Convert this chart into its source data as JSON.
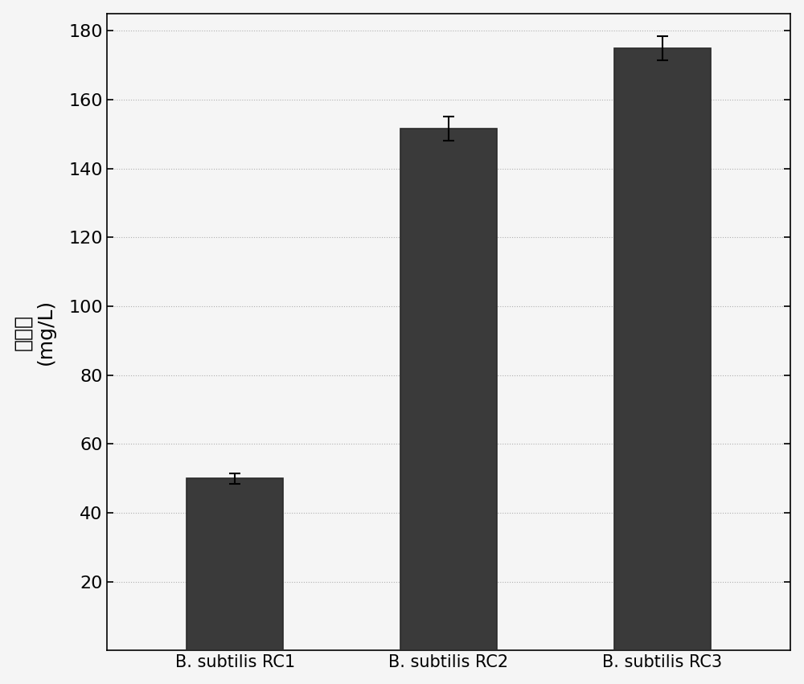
{
  "categories": [
    "B. subtilis RC1",
    "B. subtilis RC2",
    "B. subtilis RC3"
  ],
  "values": [
    50.0,
    151.5,
    175.0
  ],
  "errors": [
    1.5,
    3.5,
    3.5
  ],
  "bar_color": "#3a3a3a",
  "bar_edge_color": "#2a2a2a",
  "ylabel_chinese_part": "核黄素",
  "ylabel_units": "(mg/L)",
  "ylim": [
    0,
    185
  ],
  "yticks": [
    20,
    40,
    60,
    80,
    100,
    120,
    140,
    160,
    180
  ],
  "background_color": "#f5f5f5",
  "plot_bg_color": "#f5f5f5",
  "bar_width": 0.45,
  "figsize": [
    10.0,
    8.51
  ],
  "dpi": 100,
  "tick_fontsize": 16,
  "label_fontsize": 18,
  "xlabel_fontsize": 15,
  "error_capsize": 5,
  "error_linewidth": 1.5,
  "x_positions": [
    1,
    2,
    3
  ],
  "xlim": [
    0.4,
    3.6
  ]
}
